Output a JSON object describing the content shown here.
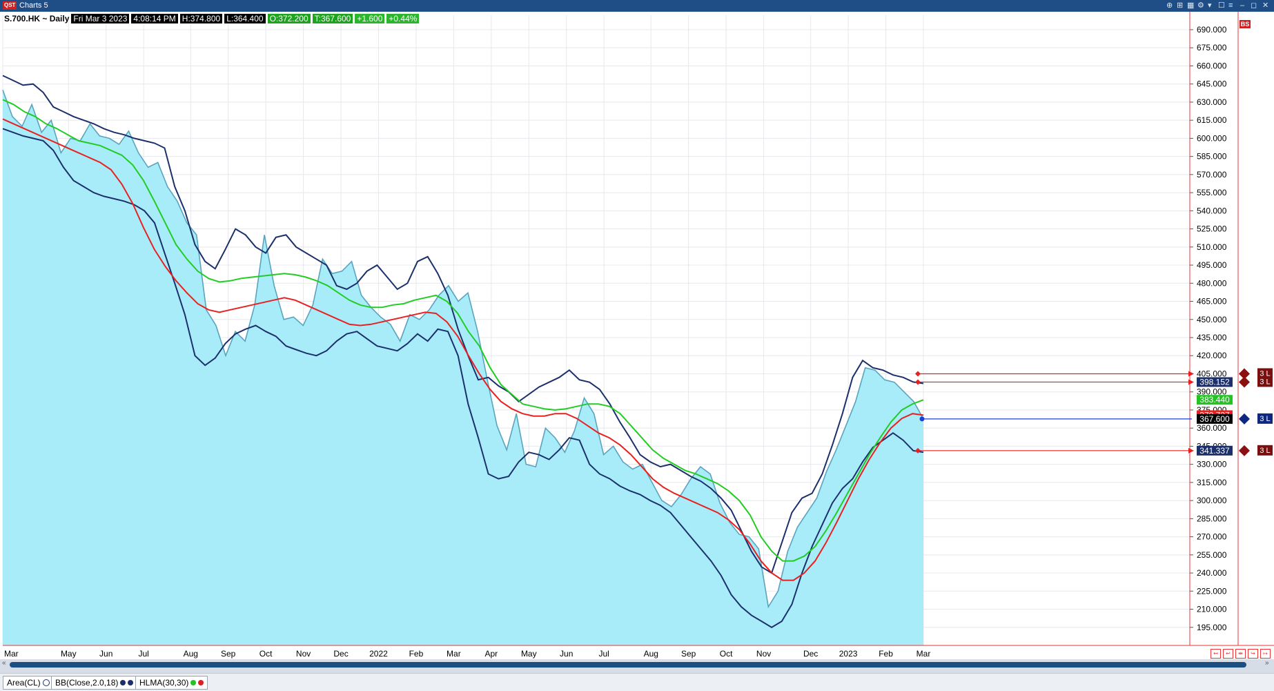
{
  "window": {
    "logo": "QST",
    "title": "Charts 5",
    "controls": [
      "⊕",
      "⊞",
      "▦",
      "⚙",
      "▾",
      "☐",
      "≡",
      "–",
      "◻",
      "✕"
    ]
  },
  "header": {
    "symbol": "S.700.HK ~ Daily",
    "date": "Fri Mar 3 2023",
    "time": "4:08:14 PM",
    "high": "H:374.800",
    "low": "L:364.400",
    "open": "O:372.200",
    "trade": "T:367.600",
    "change": "+1.600",
    "pct": "+0.44%"
  },
  "bs_badge": "BS",
  "studies": [
    {
      "label": "Area(CL)",
      "colors": [
        "#ffffff"
      ]
    },
    {
      "label": "BB(Close,2.0,18)",
      "colors": [
        "#1b2f6b",
        "#1b2f6b"
      ]
    },
    {
      "label": "HLMA(30,30)",
      "colors": [
        "#22c322",
        "#e02020"
      ]
    }
  ],
  "colors": {
    "area_fill": "#a8ecfa",
    "close_line": "#5aa3bd",
    "bb_band": "#1b2f6b",
    "hlma_high": "#22cc22",
    "hlma_low": "#e82020",
    "order_line": "#e82020",
    "last_line": "#1b3fd6"
  },
  "chart_data": {
    "type": "area",
    "ylim": [
      180,
      702
    ],
    "yticks": [
      "690.000",
      "675.000",
      "660.000",
      "645.000",
      "630.000",
      "615.000",
      "600.000",
      "585.000",
      "570.000",
      "555.000",
      "540.000",
      "525.000",
      "510.000",
      "495.000",
      "480.000",
      "465.000",
      "450.000",
      "435.000",
      "420.000",
      "405.000",
      "390.000",
      "375.000",
      "360.000",
      "345.000",
      "330.000",
      "315.000",
      "300.000",
      "285.000",
      "270.000",
      "255.000",
      "240.000",
      "225.000",
      "210.000",
      "195.000"
    ],
    "ytick_values": [
      690,
      675,
      660,
      645,
      630,
      615,
      600,
      585,
      570,
      555,
      540,
      525,
      510,
      495,
      480,
      465,
      450,
      435,
      420,
      405,
      390,
      375,
      360,
      345,
      330,
      315,
      300,
      285,
      270,
      255,
      240,
      225,
      210,
      195
    ],
    "x_labels": [
      "Mar",
      "May",
      "Jun",
      "Jul",
      "Aug",
      "Sep",
      "Oct",
      "Nov",
      "Dec",
      "2022",
      "Feb",
      "Mar",
      "Apr",
      "May",
      "Jun",
      "Jul",
      "Aug",
      "Sep",
      "Oct",
      "Nov",
      "Dec",
      "2023",
      "Feb",
      "Mar"
    ],
    "x_label_index": [
      0,
      7,
      11,
      15,
      20,
      24,
      28,
      32,
      36,
      40,
      44,
      48,
      52,
      56,
      60,
      64,
      69,
      73,
      77,
      81,
      86,
      90,
      94,
      98
    ],
    "series": [
      {
        "name": "Area(CL)",
        "values": [
          640,
          618,
          610,
          628,
          605,
          615,
          588,
          600,
          598,
          612,
          602,
          600,
          595,
          606,
          588,
          576,
          580,
          560,
          548,
          530,
          520,
          458,
          445,
          420,
          440,
          432,
          462,
          520,
          478,
          450,
          452,
          445,
          462,
          500,
          488,
          490,
          498,
          470,
          460,
          452,
          446,
          432,
          454,
          450,
          458,
          470,
          478,
          465,
          472,
          440,
          400,
          362,
          342,
          372,
          330,
          328,
          360,
          352,
          340,
          358,
          385,
          372,
          338,
          345,
          332,
          326,
          330,
          315,
          300,
          295,
          305,
          318,
          328,
          322,
          298,
          282,
          272,
          270,
          260,
          212,
          225,
          258,
          278,
          290,
          302,
          324,
          342,
          362,
          382,
          410,
          408,
          400,
          398,
          390,
          382,
          367.6
        ]
      },
      {
        "name": "BB(Close,2.0,18) upper",
        "values": [
          652,
          648,
          644,
          645,
          638,
          626,
          622,
          618,
          615,
          612,
          608,
          605,
          603,
          600,
          598,
          596,
          592,
          560,
          540,
          512,
          498,
          492,
          508,
          525,
          520,
          510,
          505,
          518,
          520,
          510,
          505,
          500,
          495,
          478,
          475,
          480,
          490,
          495,
          485,
          475,
          480,
          498,
          502,
          488,
          470,
          442,
          420,
          400,
          402,
          395,
          390,
          382,
          388,
          394,
          398,
          402,
          408,
          400,
          398,
          392,
          380,
          365,
          352,
          338,
          332,
          328,
          330,
          325,
          320,
          316,
          310,
          302,
          292,
          275,
          258,
          245,
          240,
          265,
          290,
          302,
          306,
          322,
          346,
          372,
          402,
          416,
          410,
          408,
          404,
          402,
          398.152,
          397
        ]
      },
      {
        "name": "BB(Close,2.0,18) lower",
        "values": [
          608,
          605,
          602,
          600,
          598,
          590,
          576,
          565,
          560,
          555,
          552,
          550,
          548,
          545,
          540,
          530,
          505,
          480,
          454,
          420,
          412,
          418,
          430,
          438,
          442,
          445,
          440,
          436,
          428,
          425,
          422,
          420,
          424,
          432,
          438,
          440,
          434,
          428,
          426,
          424,
          430,
          438,
          432,
          442,
          440,
          420,
          380,
          352,
          322,
          318,
          320,
          332,
          340,
          338,
          334,
          342,
          352,
          350,
          330,
          322,
          318,
          312,
          308,
          305,
          300,
          296,
          290,
          280,
          270,
          260,
          250,
          238,
          222,
          212,
          205,
          200,
          195,
          200,
          214,
          240,
          262,
          280,
          298,
          310,
          318,
          332,
          344,
          350,
          356,
          350,
          341.337,
          340
        ]
      },
      {
        "name": "HLMA(30,30) high",
        "values": [
          632,
          628,
          622,
          618,
          612,
          608,
          603,
          598,
          596,
          594,
          590,
          586,
          578,
          565,
          548,
          530,
          512,
          500,
          490,
          484,
          481,
          482,
          484,
          485,
          486,
          487,
          488,
          487,
          485,
          482,
          478,
          472,
          466,
          462,
          460,
          460,
          462,
          463,
          466,
          468,
          470,
          465,
          455,
          440,
          428,
          410,
          396,
          388,
          380,
          378,
          376,
          375,
          376,
          378,
          380,
          380,
          378,
          372,
          362,
          352,
          342,
          335,
          330,
          325,
          322,
          318,
          314,
          308,
          300,
          288,
          270,
          258,
          250,
          250,
          254,
          262,
          275,
          290,
          306,
          322,
          338,
          352,
          365,
          375,
          380,
          383.44
        ]
      },
      {
        "name": "HLMA(30,30) low",
        "values": [
          616,
          612,
          608,
          604,
          600,
          596,
          592,
          588,
          584,
          580,
          574,
          562,
          546,
          526,
          508,
          494,
          482,
          472,
          463,
          458,
          456,
          458,
          460,
          462,
          464,
          466,
          468,
          466,
          462,
          458,
          454,
          450,
          446,
          445,
          446,
          448,
          450,
          452,
          454,
          456,
          455,
          448,
          436,
          420,
          405,
          392,
          382,
          376,
          372,
          370,
          370,
          372,
          372,
          368,
          362,
          356,
          352,
          346,
          338,
          328,
          318,
          311,
          306,
          302,
          298,
          294,
          290,
          284,
          276,
          264,
          250,
          240,
          234,
          234,
          240,
          250,
          265,
          282,
          300,
          318,
          334,
          348,
          360,
          368,
          372,
          370.727
        ]
      }
    ],
    "order_lines": [
      {
        "label": "3 L",
        "price": "405.000",
        "value": 405
      },
      {
        "label": "3 L",
        "price": "398.152",
        "value": 398.152
      },
      {
        "label": "3 L",
        "price": "341.337",
        "value": 341.337
      }
    ],
    "last_price": {
      "label": "3 L",
      "price": "367.600",
      "value": 367.6
    },
    "price_labels": [
      {
        "text": "398.152",
        "value": 398.152,
        "bg": "#1b2f6b"
      },
      {
        "text": "383.440",
        "value": 383.44,
        "bg": "#22c322"
      },
      {
        "text": "370.727",
        "value": 370.727,
        "bg": "#e82020"
      },
      {
        "text": "367.600",
        "value": 367.6,
        "bg": "#000000"
      },
      {
        "text": "341.337",
        "value": 341.337,
        "bg": "#1b2f6b"
      }
    ]
  }
}
